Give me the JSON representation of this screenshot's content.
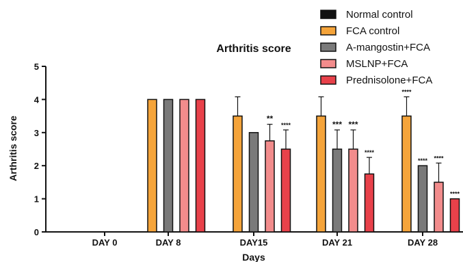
{
  "chart_data": {
    "type": "bar",
    "title": "Arthritis score",
    "xlabel": "Days",
    "ylabel": "Arthritis score",
    "ylim": [
      0,
      5
    ],
    "yticks": [
      "0",
      "1",
      "2",
      "3",
      "4",
      "5"
    ],
    "categories": [
      "DAY 0",
      "DAY 8",
      "DAY15",
      "DAY 21",
      "DAY 28"
    ],
    "series": [
      {
        "name": "Normal control",
        "color": "#111111",
        "values": [
          0,
          0,
          0,
          0,
          0
        ],
        "errors": [
          0,
          0,
          0,
          0,
          0
        ],
        "sig": [
          "",
          "",
          "",
          "",
          ""
        ]
      },
      {
        "name": "FCA control",
        "color": "#F5A43A",
        "values": [
          0,
          4,
          3.5,
          3.5,
          3.5
        ],
        "errors": [
          0,
          0,
          0.58,
          0.58,
          0.58
        ],
        "sig": [
          "",
          "",
          "",
          "",
          "****"
        ]
      },
      {
        "name": "A-mangostin+FCA",
        "color": "#7A7A7A",
        "values": [
          0,
          4,
          3,
          2.5,
          2
        ],
        "errors": [
          0,
          0,
          0,
          0.58,
          0
        ],
        "sig": [
          "",
          "",
          "",
          "***",
          "****"
        ]
      },
      {
        "name": "MSLNP+FCA",
        "color": "#F28C8C",
        "values": [
          0,
          4,
          2.75,
          2.5,
          1.5
        ],
        "errors": [
          0,
          0,
          0.5,
          0.58,
          0.58
        ],
        "sig": [
          "",
          "",
          "**",
          "***",
          "****"
        ]
      },
      {
        "name": "Prednisolone+FCA",
        "color": "#E8414A",
        "values": [
          0,
          4,
          2.5,
          1.75,
          1
        ],
        "errors": [
          0,
          0,
          0.58,
          0.5,
          0
        ],
        "sig": [
          "",
          "",
          "****",
          "****",
          "****"
        ]
      }
    ],
    "legend_position": "top-right",
    "grid": false
  }
}
